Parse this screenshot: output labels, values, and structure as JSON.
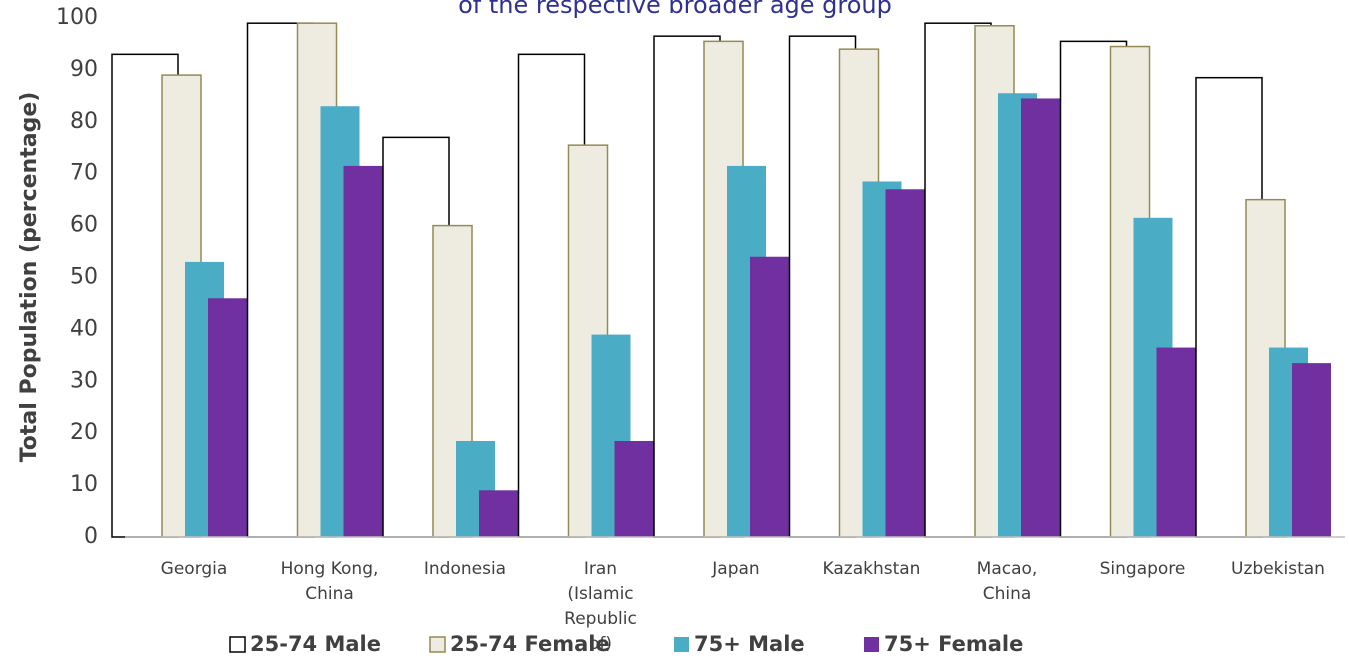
{
  "chart_data": {
    "type": "bar",
    "title": "of the respective broader age group",
    "y_label": "Total Population (percentage)",
    "categories": [
      "Georgia",
      "Hong Kong, China",
      "Indonesia",
      "Iran (Islamic Republic of)",
      "Japan",
      "Kazakhstan",
      "Macao, China",
      "Singapore",
      "Uzbekistan"
    ],
    "series": [
      {
        "name": "25-74 Male",
        "color": "#ffffff",
        "stroke": "#000000",
        "values": [
          93,
          99,
          77,
          93,
          96.5,
          96.5,
          99,
          95.5,
          88.5
        ]
      },
      {
        "name": "25-74 Female",
        "color": "#eeece1",
        "stroke": "#948a54",
        "values": [
          89,
          99,
          60,
          75.5,
          95.5,
          94,
          98.5,
          94.5,
          65
        ]
      },
      {
        "name": "75+ Male",
        "color": "#4bacc6",
        "values": [
          53,
          83,
          18.5,
          39,
          71.5,
          68.5,
          85.5,
          61.5,
          36.5
        ]
      },
      {
        "name": "75+ Female",
        "color": "#7030a0",
        "values": [
          46,
          71.5,
          9,
          18.5,
          54,
          67,
          84.5,
          36.5,
          33.5
        ]
      }
    ],
    "ylim": [
      0,
      100
    ],
    "yticks": [
      0,
      10,
      20,
      30,
      40,
      50,
      60,
      70,
      80,
      90,
      100
    ],
    "grid": false
  }
}
